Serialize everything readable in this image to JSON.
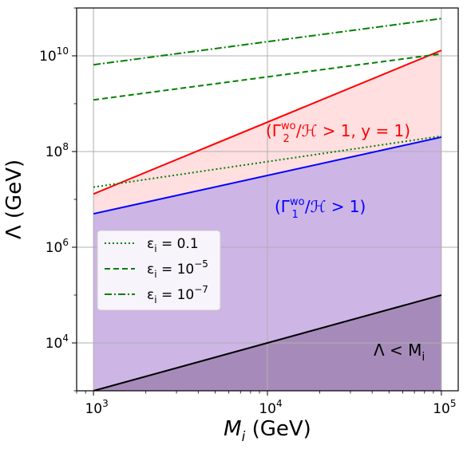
{
  "chart_data": {
    "type": "line",
    "xlabel": "M_i (GeV)",
    "ylabel": "Λ (GeV)",
    "x_scale": "log",
    "y_scale": "log",
    "xlim": [
      800,
      125000
    ],
    "ylim": [
      1000,
      100000000000
    ],
    "grid": true,
    "x_ticks": [
      {
        "value": 1000,
        "base": "10",
        "exp": "3"
      },
      {
        "value": 10000,
        "base": "10",
        "exp": "4"
      },
      {
        "value": 100000,
        "base": "10",
        "exp": "5"
      }
    ],
    "y_ticks": [
      {
        "value": 10000,
        "base": "10",
        "exp": "4"
      },
      {
        "value": 1000000,
        "base": "10",
        "exp": "6"
      },
      {
        "value": 100000000,
        "base": "10",
        "exp": "8"
      },
      {
        "value": 10000000000,
        "base": "10",
        "exp": "10"
      }
    ],
    "series": [
      {
        "key": "black",
        "color": "#000000",
        "dash": "solid",
        "x": [
          1000,
          100000
        ],
        "y": [
          1000,
          100000
        ]
      },
      {
        "key": "blue",
        "color": "#0000ff",
        "dash": "solid",
        "x": [
          1000,
          100000
        ],
        "y": [
          5000000,
          200000000
        ]
      },
      {
        "key": "red",
        "color": "#ff0000",
        "dash": "solid",
        "x": [
          1000,
          100000
        ],
        "y": [
          13000000,
          13000000000
        ]
      },
      {
        "name": "ε_i = 0.1",
        "color": "#008000",
        "dash": "dotted",
        "x": [
          1000,
          100000
        ],
        "y": [
          18000000,
          210000000
        ]
      },
      {
        "name": "ε_i = 10^−5",
        "color": "#008000",
        "dash": "dashed",
        "x": [
          1000,
          100000
        ],
        "y": [
          1200000000,
          11000000000
        ]
      },
      {
        "name": "ε_i = 10^−7",
        "color": "#008000",
        "dash": "dashdot",
        "x": [
          1000,
          100000
        ],
        "y": [
          6500000000,
          60000000000
        ]
      }
    ],
    "regions": [
      {
        "key": "purple",
        "color": "#cdb5e6",
        "description": "below blue line"
      },
      {
        "key": "pink",
        "color": "#ffdfe0",
        "description": "between blue and red lines"
      },
      {
        "key": "dark",
        "color": "#a68bba",
        "description": "below black line"
      }
    ],
    "annotations": [
      {
        "key": "red_label",
        "color": "#ff0000",
        "prefix": "(Γ",
        "sup": "wo",
        "sub": "2",
        "suffix": "/ℋ > 1, y = 1)"
      },
      {
        "key": "blue_label",
        "color": "#0000ff",
        "prefix": "(Γ",
        "sup": "wo",
        "sub": "1",
        "suffix": "/ℋ > 1)"
      },
      {
        "key": "black_label",
        "color": "#000000",
        "text": "Λ < M",
        "sub": "i"
      }
    ],
    "legend": {
      "placement": "center-left"
    }
  },
  "labels": {
    "x_main": "M",
    "x_sub": "i",
    "x_unit": " (GeV)",
    "y_main": "Λ (GeV)"
  },
  "legend_items": [
    {
      "prefix": "ε",
      "sub": "i",
      "eq": " = 0.1",
      "exp": ""
    },
    {
      "prefix": "ε",
      "sub": "i",
      "eq": " = 10",
      "exp": "−5"
    },
    {
      "prefix": "ε",
      "sub": "i",
      "eq": " = 10",
      "exp": "−7"
    }
  ]
}
